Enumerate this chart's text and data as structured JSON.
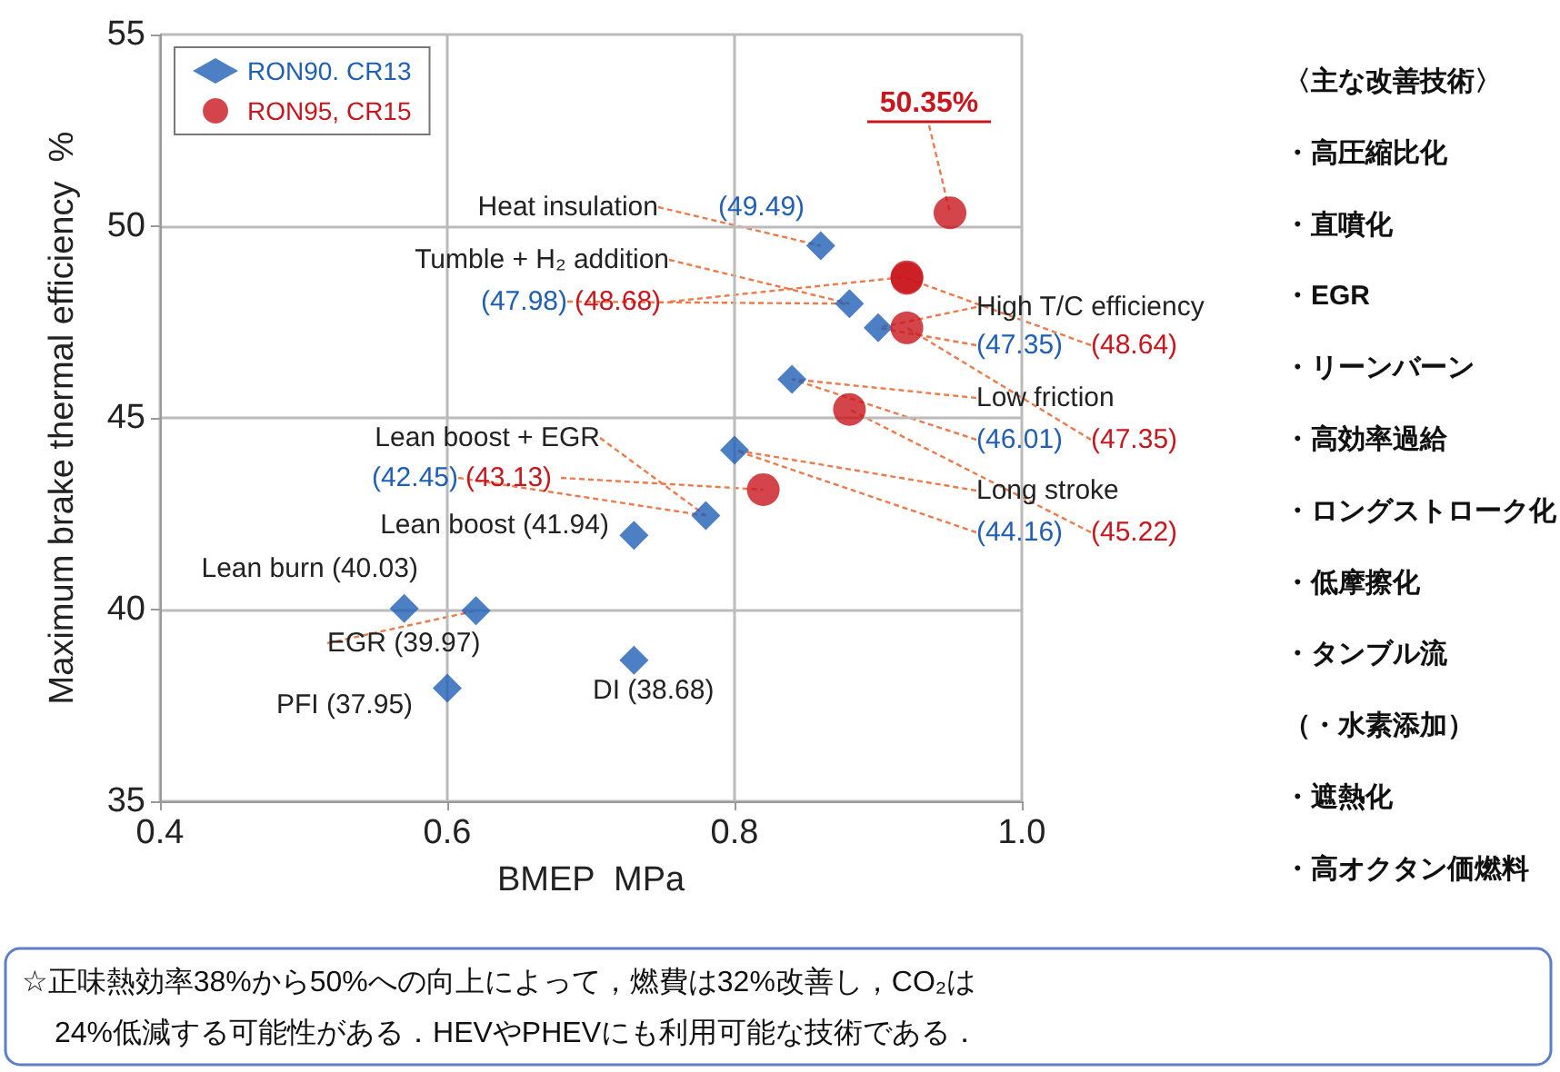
{
  "chart_data": {
    "type": "scatter",
    "xlabel": "BMEP  MPa",
    "ylabel": "Maximum brake thermal efficiency  %",
    "xlim": [
      0.4,
      1.0
    ],
    "xticks": [
      0.4,
      0.6,
      0.8,
      {
        "value": 1.0,
        "label": "1.0"
      }
    ],
    "ylim": [
      35,
      55
    ],
    "yticks": [
      35,
      40,
      45,
      50,
      55
    ],
    "grid": true,
    "legend": "top left",
    "series": [
      {
        "name": "RON90. CR13",
        "color": "#1f5fb4",
        "marker": "diamond",
        "x": [
          0.6,
          0.73,
          0.62,
          0.57,
          0.73,
          0.78,
          0.8,
          0.84,
          0.9,
          0.88,
          0.86
        ],
        "values": [
          37.95,
          38.68,
          39.97,
          40.03,
          41.94,
          42.45,
          44.16,
          46.01,
          47.35,
          47.98,
          49.49
        ],
        "value_labels": [
          null,
          null,
          null,
          null,
          null,
          "(42.45)",
          "(44.16)",
          "(46.01)",
          "(47.35)",
          "(47.98)",
          "(49.49)"
        ]
      },
      {
        "name": "RON95, CR15",
        "color": "#c8161d",
        "marker": "circle",
        "x": [
          0.82,
          0.88,
          0.92,
          0.92,
          0.92,
          0.95
        ],
        "values": [
          43.13,
          45.22,
          47.35,
          48.64,
          48.68,
          50.35
        ],
        "value_labels": [
          "(43.13)",
          "(45.22)",
          "(47.35)",
          "(48.64)",
          "(48.68)",
          "50.35%"
        ]
      }
    ],
    "annotations": [
      {
        "text": "Heat insulation",
        "x": 0.86,
        "y": 49.49
      },
      {
        "text": "Tumble + H₂ addition",
        "x": 0.88,
        "y": 47.98
      },
      {
        "text": "High T/C efficiency",
        "x": 0.9,
        "y": 47.35
      },
      {
        "text": "Low friction",
        "x": 0.84,
        "y": 46.01
      },
      {
        "text": "Lean boost + EGR",
        "x": 0.78,
        "y": 42.45
      },
      {
        "text": "Long stroke",
        "x": 0.8,
        "y": 44.16
      },
      {
        "text": "Lean boost (41.94)",
        "x": 0.73,
        "y": 41.94
      },
      {
        "text": "Lean burn (40.03)",
        "x": 0.57,
        "y": 40.03
      },
      {
        "text": "EGR (39.97)",
        "x": 0.62,
        "y": 39.97
      },
      {
        "text": "PFI (37.95)",
        "x": 0.6,
        "y": 37.95
      },
      {
        "text": "DI (38.68)",
        "x": 0.73,
        "y": 38.68
      },
      "〈主な改善技術〉",
      "・高圧縮比化",
      "・直噴化",
      "・EGR",
      "・リーンバーン",
      "・高効率過給",
      "・ロングストローク化",
      "・低摩擦化",
      "・タンブル流",
      "（・水素添加）",
      "・遮熱化",
      "・高オクタン価燃料",
      "☆正味熱効率38%から50%への向上によって，燃費は32%改善し，CO₂は",
      "24%低減する可能性がある．HEVやPHEVにも利用可能な技術である．"
    ]
  }
}
